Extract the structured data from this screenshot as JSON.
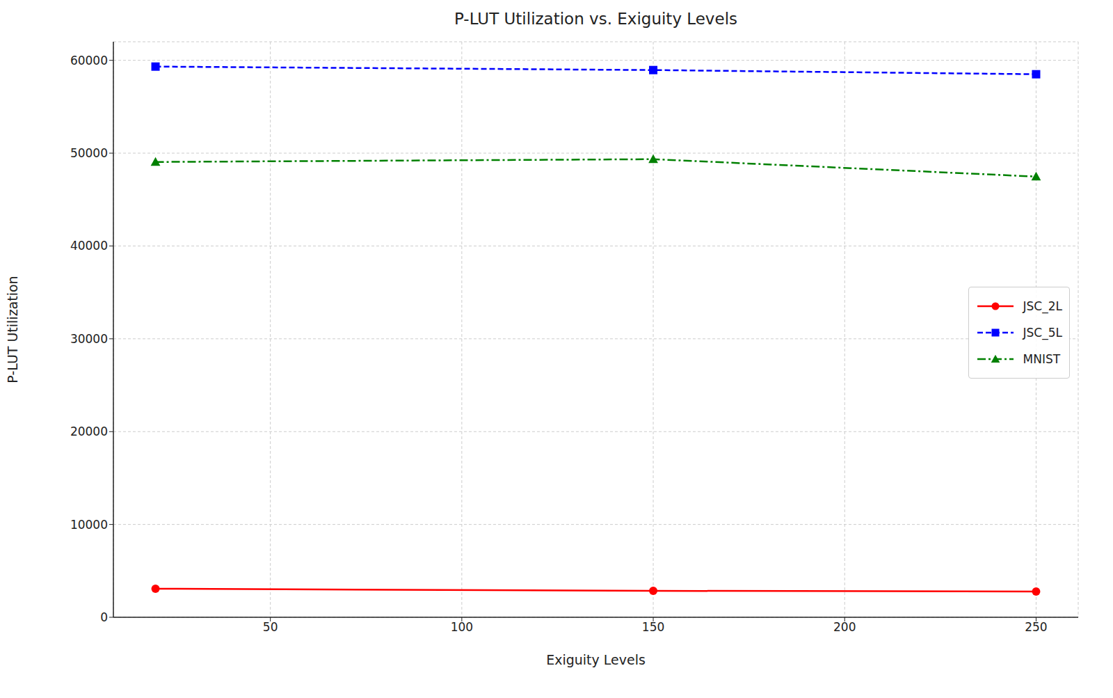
{
  "chart_data": {
    "type": "line",
    "title": "P-LUT Utilization vs. Exiguity Levels",
    "x_label": "Exiguity Levels",
    "y_label": "P-LUT Utilization",
    "x": [
      20,
      150,
      250
    ],
    "series": [
      {
        "name": "JSC_2L",
        "color": "#ff0000",
        "marker": "circle",
        "line_style": "solid",
        "values": [
          3075,
          2850,
          2775
        ]
      },
      {
        "name": "JSC_5L",
        "color": "#0000ff",
        "marker": "square",
        "line_style": "dashed",
        "values": [
          59325,
          58950,
          58500
        ]
      },
      {
        "name": "MNIST",
        "color": "#008000",
        "marker": "triangle",
        "line_style": "dashdot",
        "values": [
          49050,
          49350,
          47475
        ]
      }
    ],
    "xlim": [
      9,
      261
    ],
    "xticks": [
      50,
      100,
      150,
      200,
      250
    ],
    "ylim": [
      0,
      62000
    ],
    "yticks": [
      0,
      10000,
      20000,
      30000,
      40000,
      50000,
      60000
    ],
    "grid": true,
    "legend": "right"
  }
}
